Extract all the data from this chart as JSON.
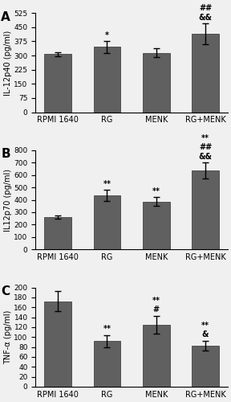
{
  "panels": [
    {
      "label": "A",
      "ylabel": "IL-12p40 (pg/ml)",
      "categories": [
        "RPMI 1640",
        "RG",
        "MENK",
        "RG+MENK"
      ],
      "values": [
        308,
        345,
        315,
        415
      ],
      "errors": [
        10,
        30,
        25,
        55
      ],
      "ylim": [
        0,
        525
      ],
      "yticks": [
        0,
        75,
        150,
        225,
        300,
        375,
        450,
        525
      ],
      "annotations": [
        "",
        "*",
        "",
        "##\n&&"
      ]
    },
    {
      "label": "B",
      "ylabel": "IL12p70 (pg/ml)",
      "categories": [
        "RPMI 1640",
        "RG",
        "MENK",
        "RG+MENK"
      ],
      "values": [
        260,
        435,
        385,
        635
      ],
      "errors": [
        15,
        45,
        35,
        65
      ],
      "ylim": [
        0,
        800
      ],
      "yticks": [
        0,
        100,
        200,
        300,
        400,
        500,
        600,
        700,
        800
      ],
      "annotations": [
        "",
        "**",
        "**",
        "**\n##\n&&"
      ]
    },
    {
      "label": "C",
      "ylabel": "TNF-α (pg/ml)",
      "categories": [
        "RPMI 1640",
        "RG",
        "MENK",
        "RG+MENK"
      ],
      "values": [
        172,
        92,
        125,
        83
      ],
      "errors": [
        20,
        12,
        18,
        10
      ],
      "ylim": [
        0,
        200
      ],
      "yticks": [
        0,
        20,
        40,
        60,
        80,
        100,
        120,
        140,
        160,
        180,
        200
      ],
      "annotations": [
        "",
        "**",
        "**\n#",
        "**\n&"
      ]
    }
  ],
  "ann_fontsize": 7,
  "bar_color": "#606060",
  "bar_width": 0.55,
  "bar_edgecolor": "#303030",
  "background_color": "#f0f0f0",
  "label_fontsize": 7,
  "tick_fontsize": 6.5,
  "panel_label_fontsize": 11
}
